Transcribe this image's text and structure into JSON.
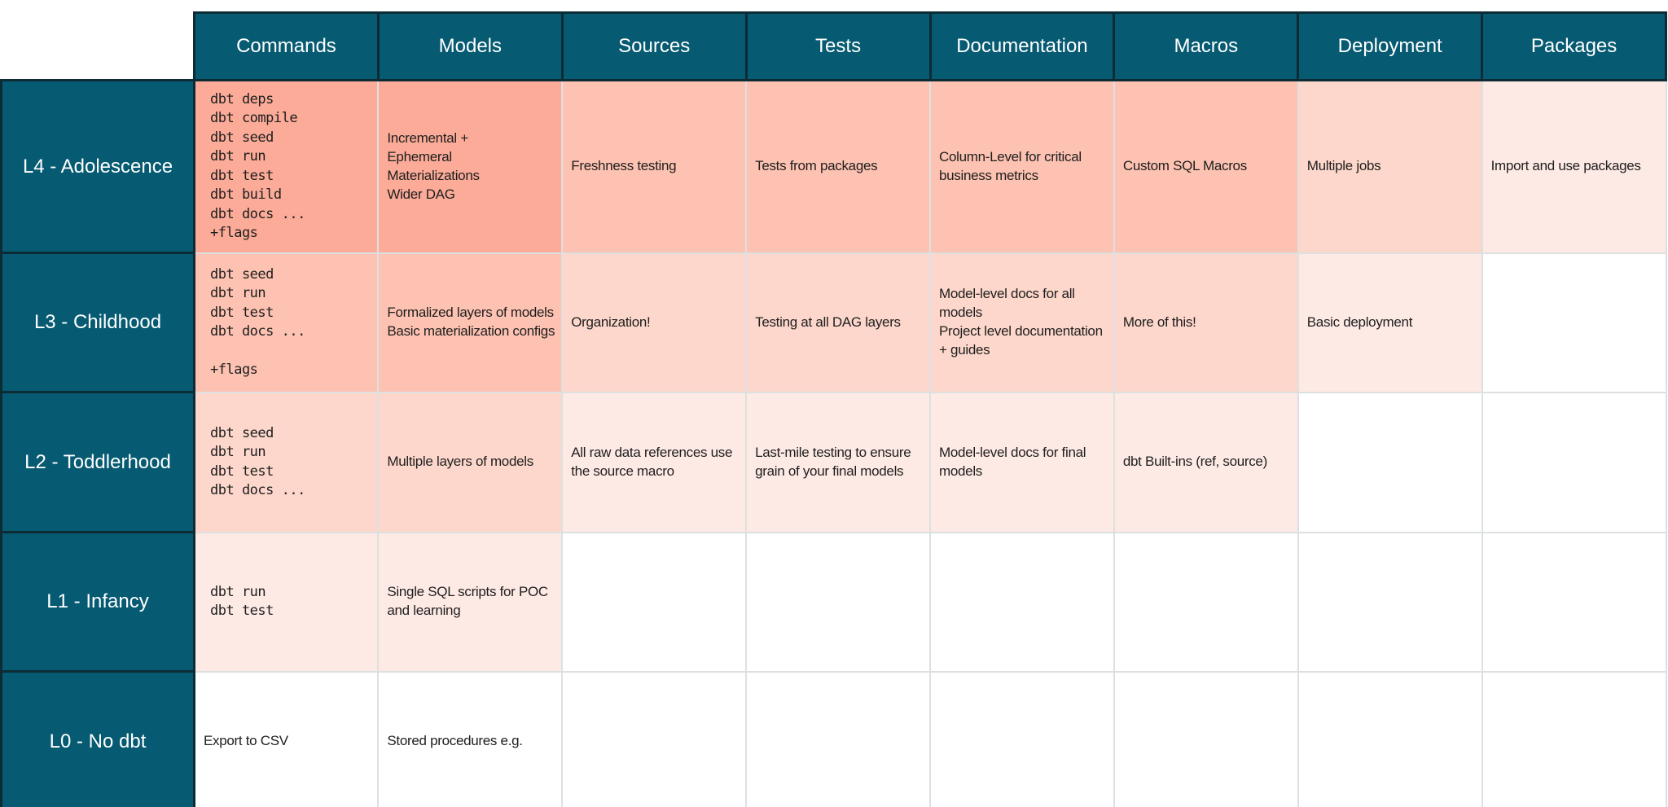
{
  "slide": {
    "accent_teal": "#065A72",
    "border_dark": "#0C2B35",
    "grid_line": "#DDE0E1",
    "text_color": "#1E1E1E",
    "heat_colors": {
      "0": "#FFFFFF",
      "1": "#FBAB97",
      "2": "#FDC2B1",
      "3": "#FDD7CB",
      "4": "#FEEAE5"
    }
  },
  "chart_data": {
    "type": "table",
    "legend_position": "none",
    "grid": true,
    "columns": [
      "Commands",
      "Models",
      "Sources",
      "Tests",
      "Documentation",
      "Macros",
      "Deployment",
      "Packages"
    ],
    "row_labels": [
      "L4 - Adolescence",
      "L3 - Childhood",
      "L2 - Toddlerhood",
      "L1 - Infancy",
      "L0 - No dbt"
    ],
    "heat_levels_by_row": [
      [
        1,
        1,
        2,
        2,
        2,
        2,
        3,
        4
      ],
      [
        2,
        2,
        3,
        3,
        3,
        3,
        4,
        0
      ],
      [
        3,
        3,
        4,
        4,
        4,
        4,
        0,
        0
      ],
      [
        4,
        4,
        0,
        0,
        0,
        0,
        0,
        0
      ],
      [
        0,
        0,
        0,
        0,
        0,
        0,
        0,
        0
      ]
    ],
    "cells": [
      [
        {
          "text": "dbt deps\ndbt compile\ndbt seed\ndbt run\ndbt test\ndbt build\ndbt docs ...\n+flags",
          "mono": true,
          "heat": 1
        },
        {
          "text": "Incremental +\nEphemeral\nMaterializations\nWider DAG",
          "mono": false,
          "heat": 1
        },
        {
          "text": "Freshness testing",
          "mono": false,
          "heat": 2
        },
        {
          "text": "Tests from packages",
          "mono": false,
          "heat": 2
        },
        {
          "text": "Column-Level for critical business metrics",
          "mono": false,
          "heat": 2
        },
        {
          "text": "Custom SQL Macros",
          "mono": false,
          "heat": 2
        },
        {
          "text": "Multiple jobs",
          "mono": false,
          "heat": 3
        },
        {
          "text": "Import and use packages",
          "mono": false,
          "heat": 4
        }
      ],
      [
        {
          "text": "dbt seed\ndbt run\ndbt test\ndbt docs ...\n\n+flags",
          "mono": true,
          "heat": 2
        },
        {
          "text": "Formalized layers of models\nBasic materialization configs",
          "mono": false,
          "heat": 2
        },
        {
          "text": "Organization!",
          "mono": false,
          "heat": 3
        },
        {
          "text": "Testing at all DAG layers",
          "mono": false,
          "heat": 3
        },
        {
          "text": "Model-level docs for all models\nProject level documentation + guides",
          "mono": false,
          "heat": 3
        },
        {
          "text": "More of this!",
          "mono": false,
          "heat": 3
        },
        {
          "text": "Basic deployment",
          "mono": false,
          "heat": 4
        },
        {
          "text": "",
          "mono": false,
          "heat": 0
        }
      ],
      [
        {
          "text": "dbt seed\ndbt run\ndbt test\ndbt docs ...",
          "mono": true,
          "heat": 3
        },
        {
          "text": "Multiple layers of models",
          "mono": false,
          "heat": 3
        },
        {
          "text": "All raw data references use the source macro",
          "mono": false,
          "heat": 4
        },
        {
          "text": "Last-mile testing to ensure grain of your final models",
          "mono": false,
          "heat": 4
        },
        {
          "text": "Model-level docs for final models",
          "mono": false,
          "heat": 4
        },
        {
          "text": "dbt Built-ins (ref, source)",
          "mono": false,
          "heat": 4
        },
        {
          "text": "",
          "mono": false,
          "heat": 0
        },
        {
          "text": "",
          "mono": false,
          "heat": 0
        }
      ],
      [
        {
          "text": "dbt run\ndbt test",
          "mono": true,
          "heat": 4
        },
        {
          "text": "Single SQL scripts for POC and learning",
          "mono": false,
          "heat": 4
        },
        {
          "text": "",
          "mono": false,
          "heat": 0
        },
        {
          "text": "",
          "mono": false,
          "heat": 0
        },
        {
          "text": "",
          "mono": false,
          "heat": 0
        },
        {
          "text": "",
          "mono": false,
          "heat": 0
        },
        {
          "text": "",
          "mono": false,
          "heat": 0
        },
        {
          "text": "",
          "mono": false,
          "heat": 0
        }
      ],
      [
        {
          "text": "Export to CSV",
          "mono": false,
          "heat": 0
        },
        {
          "text": "Stored procedures e.g.",
          "mono": false,
          "heat": 0
        },
        {
          "text": "",
          "mono": false,
          "heat": 0
        },
        {
          "text": "",
          "mono": false,
          "heat": 0
        },
        {
          "text": "",
          "mono": false,
          "heat": 0
        },
        {
          "text": "",
          "mono": false,
          "heat": 0
        },
        {
          "text": "",
          "mono": false,
          "heat": 0
        },
        {
          "text": "",
          "mono": false,
          "heat": 0
        }
      ]
    ]
  }
}
